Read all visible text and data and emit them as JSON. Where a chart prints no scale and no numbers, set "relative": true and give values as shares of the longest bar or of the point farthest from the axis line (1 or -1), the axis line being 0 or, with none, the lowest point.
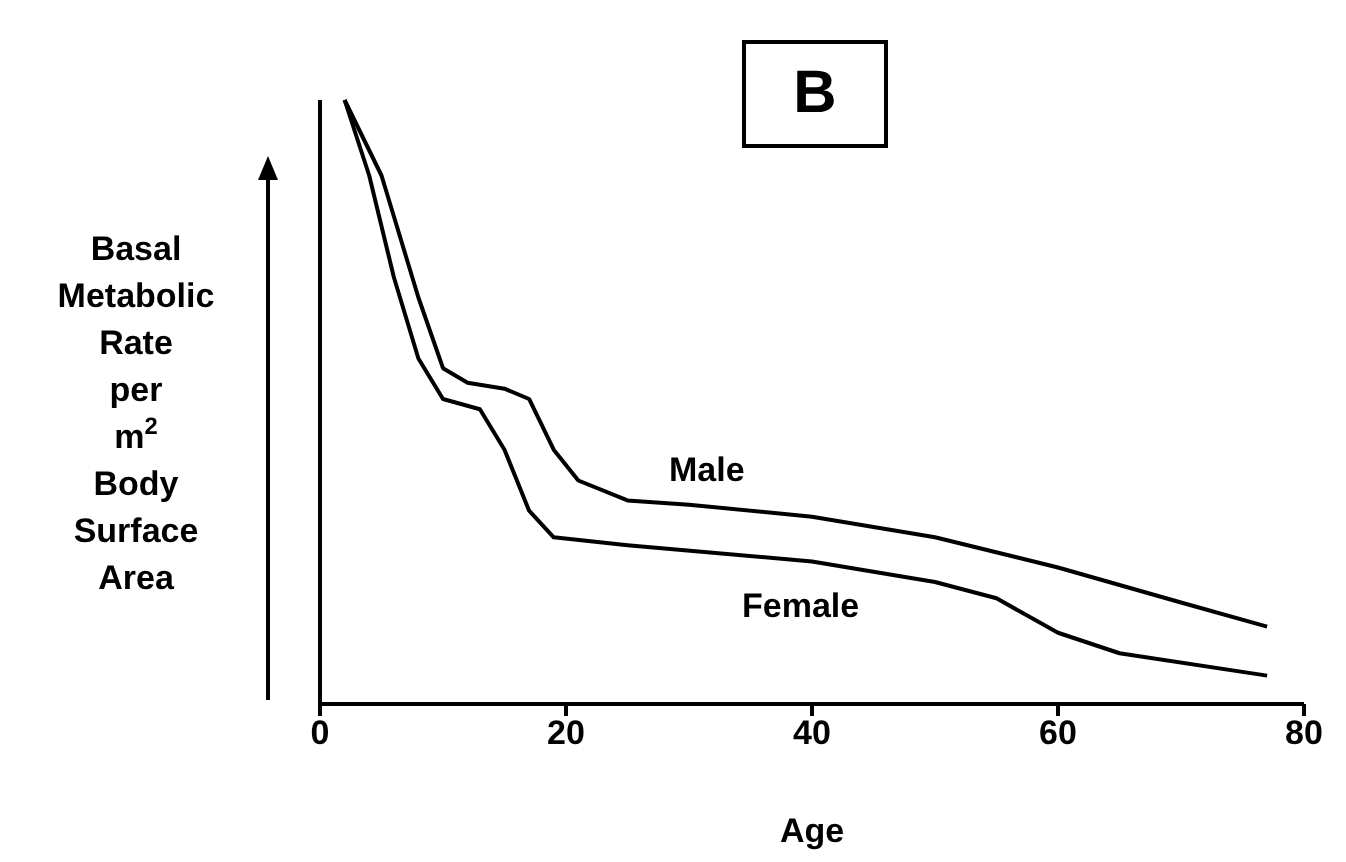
{
  "chart_data": {
    "type": "line",
    "title": "B",
    "xlabel": "Age",
    "ylabel": "Basal Metabolic Rate per m$^{2}$ Body Surface Area",
    "relative": true,
    "xlim": [
      0,
      80
    ],
    "xticks": [
      0,
      20,
      40,
      60,
      80
    ],
    "grid": false,
    "legend": false,
    "marker": "none",
    "line_style": "solid",
    "series": [
      {
        "name": "Male",
        "color": "#000000",
        "x": [
          2,
          5,
          8,
          10,
          12,
          15,
          17,
          19,
          21,
          25,
          30,
          40,
          50,
          60,
          70,
          77
        ],
        "values": [
          1,
          0.875,
          0.673,
          0.556,
          0.532,
          0.522,
          0.505,
          0.421,
          0.37,
          0.337,
          0.33,
          0.31,
          0.276,
          0.226,
          0.168,
          0.128
        ]
      },
      {
        "name": "Female",
        "color": "#000000",
        "x": [
          2,
          4,
          6,
          8,
          10,
          13,
          15,
          17,
          19,
          25,
          40,
          50,
          55,
          60,
          65,
          77
        ],
        "values": [
          1,
          0.875,
          0.707,
          0.572,
          0.505,
          0.488,
          0.421,
          0.32,
          0.276,
          0.263,
          0.236,
          0.202,
          0.175,
          0.118,
          0.084,
          0.047
        ]
      }
    ]
  }
}
